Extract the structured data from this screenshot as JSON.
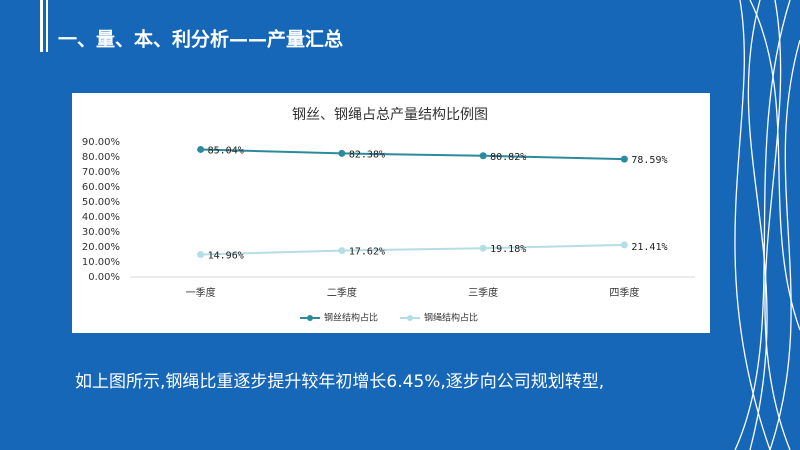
{
  "slide": {
    "title": "一、量、本、利分析——产量汇总",
    "body": "如上图所示,钢绳比重逐步提升较年初增长6.45%,逐步向公司规划转型,"
  },
  "chart_data": {
    "type": "line",
    "title": "钢丝、钢绳占总产量结构比例图",
    "categories": [
      "一季度",
      "二季度",
      "三季度",
      "四季度"
    ],
    "series": [
      {
        "name": "钢丝结构占比",
        "color": "#2b8a9c",
        "values": [
          85.04,
          82.38,
          80.82,
          78.59
        ],
        "value_labels": [
          "85.04%",
          "82.38%",
          "80.82%",
          "78.59%"
        ]
      },
      {
        "name": "钢绳结构占比",
        "color": "#b5dde5",
        "values": [
          14.96,
          17.62,
          19.18,
          21.41
        ],
        "value_labels": [
          "14.96%",
          "17.62%",
          "19.18%",
          "21.41%"
        ]
      }
    ],
    "ylim": [
      0,
      90
    ],
    "yticks": [
      {
        "value": 0,
        "label": "0.00%"
      },
      {
        "value": 10,
        "label": "10.00%"
      },
      {
        "value": 20,
        "label": "20.00%"
      },
      {
        "value": 30,
        "label": "30.00%"
      },
      {
        "value": 40,
        "label": "40.00%"
      },
      {
        "value": 50,
        "label": "50.00%"
      },
      {
        "value": 60,
        "label": "60.00%"
      },
      {
        "value": 70,
        "label": "70.00%"
      },
      {
        "value": 80,
        "label": "80.00%"
      },
      {
        "value": 90,
        "label": "90.00%"
      }
    ],
    "legend": "bottom"
  }
}
